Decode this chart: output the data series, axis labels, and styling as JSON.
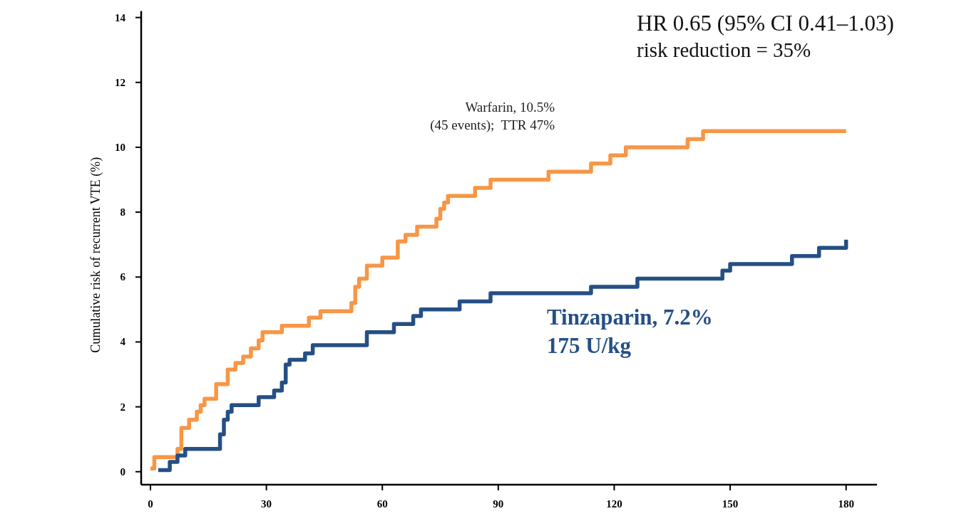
{
  "chart_data": {
    "type": "step",
    "ylabel": "Cumulative risk of  recurrent VTE (%)",
    "xlim": [
      -2.4,
      188
    ],
    "xticks": [
      0,
      30,
      60,
      90,
      120,
      150,
      180
    ],
    "ylim": [
      -0.4,
      14.2
    ],
    "yticks": [
      0,
      2,
      4,
      6,
      8,
      10,
      12,
      14
    ],
    "grid": false,
    "legend": false,
    "line_style": "solid",
    "marker": "none",
    "annotations": [
      "HR 0.65 (95% CI 0.41–1.03)",
      "risk reduction = 35%"
    ],
    "series": [
      {
        "name": "Warfarin, 10.5%\n(45 events);  TTR 47%",
        "color": "#f79646",
        "x": [
          0,
          1,
          7,
          8,
          10,
          12,
          13,
          14,
          17,
          20,
          22,
          24,
          26,
          28,
          29,
          34,
          41,
          44,
          52,
          53,
          54,
          56,
          60,
          64,
          66,
          69,
          74,
          75,
          76,
          77,
          84,
          88,
          103,
          114,
          119,
          123,
          139,
          143,
          180
        ],
        "values": [
          0.1,
          0.45,
          0.7,
          1.35,
          1.6,
          1.85,
          2.05,
          2.25,
          2.7,
          3.15,
          3.35,
          3.55,
          3.8,
          4.05,
          4.3,
          4.5,
          4.75,
          4.95,
          5.2,
          5.7,
          5.95,
          6.35,
          6.6,
          7.1,
          7.3,
          7.55,
          7.8,
          8.1,
          8.3,
          8.5,
          8.75,
          9.0,
          9.25,
          9.5,
          9.75,
          10.0,
          10.25,
          10.5,
          10.5
        ]
      },
      {
        "name": "Tinzaparin, 7.2%\n175 U/kg",
        "color": "#254f85",
        "x": [
          2,
          5,
          7,
          9,
          18,
          19,
          20,
          21,
          28,
          32,
          34,
          35,
          36,
          40,
          42,
          56,
          63,
          68,
          70,
          80,
          88,
          114,
          126,
          148,
          150,
          166,
          173,
          180
        ],
        "values": [
          0.05,
          0.3,
          0.5,
          0.7,
          1.15,
          1.6,
          1.85,
          2.05,
          2.3,
          2.5,
          2.75,
          3.3,
          3.45,
          3.65,
          3.9,
          4.3,
          4.55,
          4.8,
          5.0,
          5.25,
          5.5,
          5.7,
          5.95,
          6.2,
          6.4,
          6.65,
          6.9,
          7.15
        ]
      }
    ]
  }
}
